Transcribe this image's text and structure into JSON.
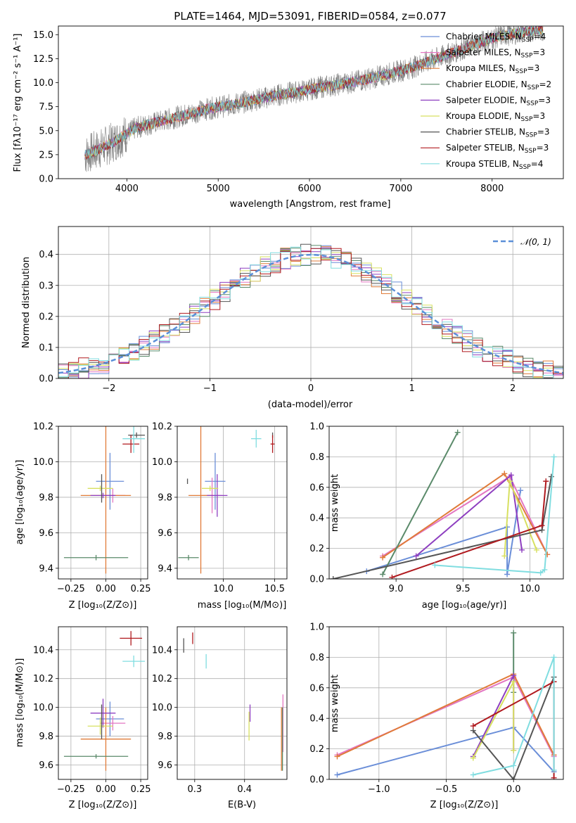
{
  "chart_data": [
    {
      "id": "spectrum",
      "type": "line",
      "title": "PLATE=1464, MJD=53091, FIBERID=0584, z=0.077",
      "xlabel": "wavelength [Angstrom, rest frame]",
      "ylabel": "Flux [fλ10⁻¹⁷ erg cm⁻² s⁻¹ A⁻¹]",
      "xlim": [
        3250,
        8780
      ],
      "ylim": [
        0,
        15.9
      ],
      "xticks": [
        4000,
        5000,
        6000,
        7000,
        8000
      ],
      "yticks": [
        0.0,
        2.5,
        5.0,
        7.5,
        10.0,
        12.5,
        15.0
      ],
      "x": [
        3550,
        3700,
        3850,
        3950,
        4100,
        4300,
        4500,
        4700,
        4900,
        5100,
        5300,
        5500,
        5700,
        5900,
        6100,
        6300,
        6500,
        6700,
        6900,
        7100,
        7300,
        7500,
        7700,
        7900,
        8100,
        8300,
        8500
      ],
      "observed": [
        2.5,
        3.1,
        3.8,
        4.4,
        5.3,
        5.8,
        6.3,
        6.8,
        7.3,
        7.6,
        8.0,
        8.4,
        8.8,
        9.1,
        9.5,
        9.8,
        10.1,
        10.5,
        11.0,
        11.5,
        12.2,
        12.9,
        13.6,
        14.3,
        14.9,
        15.2,
        15.5
      ],
      "legend_position": "upper right",
      "legend": [
        {
          "label": "Chabrier MILES, N",
          "sub": "SSP",
          "suffix": "=4",
          "color": "#6a8ed8"
        },
        {
          "label": "Salpeter MILES, N",
          "sub": "SSP",
          "suffix": "=3",
          "color": "#e377c2"
        },
        {
          "label": "Kroupa MILES, N",
          "sub": "SSP",
          "suffix": "=3",
          "color": "#e07b39"
        },
        {
          "label": "Chabrier ELODIE, N",
          "sub": "SSP",
          "suffix": "=2",
          "color": "#5a8a6a"
        },
        {
          "label": "Salpeter ELODIE, N",
          "sub": "SSP",
          "suffix": "=3",
          "color": "#8e3fc0"
        },
        {
          "label": "Kroupa ELODIE, N",
          "sub": "SSP",
          "suffix": "=3",
          "color": "#d7e060"
        },
        {
          "label": "Chabrier STELIB, N",
          "sub": "SSP",
          "suffix": "=3",
          "color": "#555555"
        },
        {
          "label": "Salpeter STELIB, N",
          "sub": "SSP",
          "suffix": "=3",
          "color": "#b0191e"
        },
        {
          "label": "Kroupa STELIB, N",
          "sub": "SSP",
          "suffix": "=4",
          "color": "#80dde0"
        }
      ]
    },
    {
      "id": "residuals",
      "type": "line",
      "xlabel": "(data-model)/error",
      "ylabel": "Normed distribution",
      "xlim": [
        -2.5,
        2.5
      ],
      "ylim": [
        0,
        0.49
      ],
      "xticks": [
        -2,
        -1,
        0,
        1,
        2
      ],
      "yticks": [
        0.0,
        0.1,
        0.2,
        0.3,
        0.4
      ],
      "legend": [
        {
          "label": "𝒩(0, 1)",
          "color": "#5b8fd8",
          "style": "dashed"
        }
      ],
      "legend_position": "upper right",
      "grid": true
    },
    {
      "id": "age_vs_Z",
      "type": "scatter",
      "xlabel": "Z [log₁₀(Z/Z⊙)]",
      "ylabel": "age  [log₁₀(age/yr)]",
      "xlim": [
        -0.34,
        0.3
      ],
      "ylim": [
        9.34,
        10.2
      ],
      "xticks": [
        -0.25,
        0.0,
        0.25
      ],
      "xticklabels": [
        "−0.25",
        "0.00",
        "0.25"
      ],
      "yticks": [
        9.4,
        9.6,
        9.8,
        10.0,
        10.2
      ],
      "series": [
        {
          "name": "Chabrier MILES",
          "x": 0.03,
          "y": 9.89,
          "xerr": 0.1,
          "yerr": 0.16,
          "color": "#6a8ed8"
        },
        {
          "name": "Salpeter MILES",
          "x": 0.05,
          "y": 9.81,
          "xerr": 0.09,
          "yerr": 0.04,
          "color": "#e377c2"
        },
        {
          "name": "Kroupa MILES",
          "x": 0.0,
          "y": 9.81,
          "xerr": 0.18,
          "yerr": 0.44,
          "color": "#e07b39"
        },
        {
          "name": "Chabrier ELODIE",
          "x": -0.07,
          "y": 9.46,
          "xerr": 0.23,
          "yerr": 0.0,
          "color": "#5a8a6a"
        },
        {
          "name": "Salpeter ELODIE",
          "x": -0.02,
          "y": 9.81,
          "xerr": 0.09,
          "yerr": 0.0,
          "color": "#8e3fc0"
        },
        {
          "name": "Kroupa ELODIE",
          "x": -0.04,
          "y": 9.85,
          "xerr": 0.09,
          "yerr": 0.0,
          "color": "#d7e060"
        },
        {
          "name": "Chabrier STELIB",
          "x": -0.03,
          "y": 9.85,
          "xerr": 0.0,
          "yerr": 0.08,
          "color": "#555555"
        },
        {
          "name": "Chabrier STELIB (b)",
          "x": 0.22,
          "y": 10.15,
          "xerr": 0.06,
          "yerr": 0.0,
          "color": "#555555"
        },
        {
          "name": "Salpeter STELIB",
          "x": 0.18,
          "y": 10.1,
          "xerr": 0.06,
          "yerr": 0.05,
          "color": "#b0191e"
        },
        {
          "name": "Kroupa STELIB",
          "x": 0.2,
          "y": 10.13,
          "xerr": 0.08,
          "yerr": 0.08,
          "color": "#80dde0"
        }
      ]
    },
    {
      "id": "age_vs_mass",
      "type": "scatter",
      "xlabel": "mass [log₁₀(M/M⊙)]",
      "xlim": [
        9.55,
        10.62
      ],
      "ylim": [
        9.34,
        10.2
      ],
      "xticks": [
        10.0,
        10.5
      ],
      "yticks": [
        9.4,
        9.6,
        9.8,
        10.0,
        10.2
      ],
      "series": [
        {
          "name": "Chabrier MILES",
          "x": 9.92,
          "y": 9.89,
          "xerr": 0.1,
          "yerr": 0.16,
          "color": "#6a8ed8"
        },
        {
          "name": "Salpeter MILES",
          "x": 9.89,
          "y": 9.81,
          "xerr": 0.1,
          "yerr": 0.1,
          "color": "#e377c2"
        },
        {
          "name": "Kroupa MILES",
          "x": 9.78,
          "y": 9.81,
          "xerr": 0.12,
          "yerr": 0.44,
          "color": "#e07b39"
        },
        {
          "name": "Chabrier ELODIE",
          "x": 9.66,
          "y": 9.46,
          "xerr": 0.1,
          "yerr": 0.0,
          "color": "#5a8a6a"
        },
        {
          "name": "Salpeter ELODIE",
          "x": 9.94,
          "y": 9.81,
          "xerr": 0.1,
          "yerr": 0.12,
          "color": "#8e3fc0"
        },
        {
          "name": "Kroupa ELODIE",
          "x": 9.87,
          "y": 9.85,
          "xerr": 0.08,
          "yerr": 0.0,
          "color": "#d7e060"
        },
        {
          "name": "Chabrier STELIB",
          "x": 9.65,
          "y": 9.89,
          "xerr": 0.0,
          "yerr": 0.0,
          "color": "#555555"
        },
        {
          "name": "Chabrier STELIB (b)",
          "x": 10.48,
          "y": 10.15,
          "xerr": 0.0,
          "yerr": 0.0,
          "color": "#555555"
        },
        {
          "name": "Salpeter STELIB",
          "x": 10.48,
          "y": 10.1,
          "xerr": 0.02,
          "yerr": 0.05,
          "color": "#b0191e"
        },
        {
          "name": "Kroupa STELIB",
          "x": 10.32,
          "y": 10.13,
          "xerr": 0.05,
          "yerr": 0.05,
          "color": "#80dde0"
        }
      ]
    },
    {
      "id": "weight_vs_age",
      "type": "line",
      "xlabel": "age  [log₁₀(age/yr)]",
      "ylabel": "mass weight",
      "xlim": [
        8.5,
        10.25
      ],
      "ylim": [
        0,
        1.0
      ],
      "xticks": [
        9.0,
        9.5,
        10.0
      ],
      "yticks": [
        0.0,
        0.2,
        0.4,
        0.6,
        0.8,
        1.0
      ],
      "grid": true,
      "series": [
        {
          "name": "Chabrier MILES",
          "color": "#6a8ed8",
          "x": [
            8.78,
            9.83,
            9.83,
            9.93
          ],
          "y": [
            0.05,
            0.34,
            0.03,
            0.58
          ]
        },
        {
          "name": "Salpeter MILES",
          "color": "#e377c2",
          "x": [
            8.9,
            9.85,
            10.13
          ],
          "y": [
            0.15,
            0.67,
            0.16
          ]
        },
        {
          "name": "Kroupa MILES",
          "color": "#e07b39",
          "x": [
            8.9,
            9.81,
            10.13
          ],
          "y": [
            0.14,
            0.69,
            0.16
          ]
        },
        {
          "name": "Chabrier ELODIE",
          "color": "#5a8a6a",
          "x": [
            8.9,
            9.46
          ],
          "y": [
            0.03,
            0.96
          ]
        },
        {
          "name": "Salpeter ELODIE",
          "color": "#8e3fc0",
          "x": [
            9.15,
            9.86,
            9.94
          ],
          "y": [
            0.15,
            0.68,
            0.19
          ]
        },
        {
          "name": "Kroupa ELODIE",
          "color": "#d7e060",
          "x": [
            9.81,
            9.85,
            10.05
          ],
          "y": [
            0.15,
            0.64,
            0.19
          ]
        },
        {
          "name": "Chabrier STELIB",
          "color": "#555555",
          "x": [
            8.53,
            10.09,
            10.16
          ],
          "y": [
            0.0,
            0.32,
            0.67
          ]
        },
        {
          "name": "Salpeter STELIB",
          "color": "#b0191e",
          "x": [
            8.97,
            10.09,
            10.12
          ],
          "y": [
            0.01,
            0.35,
            0.64
          ]
        },
        {
          "name": "Kroupa STELIB",
          "color": "#80dde0",
          "x": [
            9.29,
            10.08,
            10.11,
            10.18
          ],
          "y": [
            0.09,
            0.04,
            0.06,
            0.8
          ]
        }
      ]
    },
    {
      "id": "mass_vs_Z",
      "type": "scatter",
      "xlabel": "Z [log₁₀(Z/Z⊙)]",
      "ylabel": "mass [log₁₀(M/M⊙)]",
      "xlim": [
        -0.34,
        0.3
      ],
      "ylim": [
        9.5,
        10.56
      ],
      "xticks": [
        -0.25,
        0.0,
        0.25
      ],
      "xticklabels": [
        "−0.25",
        "0.00",
        "0.25"
      ],
      "yticks": [
        9.6,
        9.8,
        10.0,
        10.2,
        10.4
      ],
      "series": [
        {
          "name": "Chabrier MILES",
          "x": 0.03,
          "y": 9.92,
          "xerr": 0.1,
          "yerr": 0.12,
          "color": "#6a8ed8"
        },
        {
          "name": "Salpeter MILES",
          "x": 0.05,
          "y": 9.89,
          "xerr": 0.09,
          "yerr": 0.05,
          "color": "#e377c2"
        },
        {
          "name": "Kroupa MILES",
          "x": 0.0,
          "y": 9.78,
          "xerr": 0.18,
          "yerr": 0.22,
          "color": "#e07b39"
        },
        {
          "name": "Chabrier ELODIE",
          "x": -0.07,
          "y": 9.66,
          "xerr": 0.23,
          "yerr": 0.0,
          "color": "#5a8a6a"
        },
        {
          "name": "Salpeter ELODIE",
          "x": -0.02,
          "y": 9.96,
          "xerr": 0.09,
          "yerr": 0.1,
          "color": "#8e3fc0"
        },
        {
          "name": "Kroupa ELODIE",
          "x": -0.04,
          "y": 9.87,
          "xerr": 0.09,
          "yerr": 0.06,
          "color": "#d7e060"
        },
        {
          "name": "Chabrier STELIB",
          "x": -0.03,
          "y": 9.9,
          "xerr": 0.0,
          "yerr": 0.12,
          "color": "#555555"
        },
        {
          "name": "Salpeter STELIB",
          "x": 0.18,
          "y": 10.48,
          "xerr": 0.08,
          "yerr": 0.05,
          "color": "#b0191e"
        },
        {
          "name": "Kroupa STELIB",
          "x": 0.2,
          "y": 10.32,
          "xerr": 0.08,
          "yerr": 0.04,
          "color": "#80dde0"
        }
      ]
    },
    {
      "id": "mass_vs_ebv",
      "type": "scatter",
      "xlabel": "E(B-V)",
      "xlim": [
        0.265,
        0.485
      ],
      "ylim": [
        9.5,
        10.56
      ],
      "xticks": [
        0.3,
        0.4
      ],
      "yticks": [
        9.6,
        9.8,
        10.0,
        10.2,
        10.4
      ],
      "series": [
        {
          "name": "Chabrier STELIB",
          "x": 0.278,
          "y": 10.43,
          "xerr": 0.0,
          "yerr": 0.05,
          "color": "#555555"
        },
        {
          "name": "Salpeter STELIB",
          "x": 0.296,
          "y": 10.48,
          "xerr": 0.0,
          "yerr": 0.04,
          "color": "#b0191e"
        },
        {
          "name": "Kroupa STELIB",
          "x": 0.323,
          "y": 10.32,
          "xerr": 0.0,
          "yerr": 0.05,
          "color": "#80dde0"
        },
        {
          "name": "Salpeter ELODIE",
          "x": 0.411,
          "y": 9.96,
          "xerr": 0.0,
          "yerr": 0.06,
          "color": "#8e3fc0"
        },
        {
          "name": "Kroupa ELODIE",
          "x": 0.409,
          "y": 9.87,
          "xerr": 0.0,
          "yerr": 0.1,
          "color": "#d7e060"
        },
        {
          "name": "Salpeter MILES",
          "x": 0.477,
          "y": 9.89,
          "xerr": 0.0,
          "yerr": 0.2,
          "color": "#e377c2"
        },
        {
          "name": "Kroupa MILES",
          "x": 0.474,
          "y": 9.78,
          "xerr": 0.0,
          "yerr": 0.22,
          "color": "#e07b39"
        },
        {
          "name": "Chabrier ELODIE",
          "x": 0.476,
          "y": 9.78,
          "xerr": 0.0,
          "yerr": 0.22,
          "color": "#5a8a6a"
        }
      ]
    },
    {
      "id": "weight_vs_Z",
      "type": "line",
      "xlabel": "Z [log₁₀(Z/Z⊙)]",
      "ylabel": "mass weight",
      "xlim": [
        -1.37,
        0.37
      ],
      "ylim": [
        0,
        1.0
      ],
      "xticks": [
        -1.0,
        -0.5,
        0.0
      ],
      "xticklabels": [
        "−1.0",
        "−0.5",
        "0.0"
      ],
      "yticks": [
        0.0,
        0.2,
        0.4,
        0.6,
        0.8,
        1.0
      ],
      "grid": true,
      "series": [
        {
          "name": "Chabrier MILES",
          "color": "#6a8ed8",
          "x": [
            -1.31,
            0.0,
            0.3
          ],
          "y": [
            0.03,
            0.34,
            0.05
          ]
        },
        {
          "name": "Salpeter MILES",
          "color": "#e377c2",
          "x": [
            -1.31,
            0.0,
            0.3
          ],
          "y": [
            0.16,
            0.67,
            0.15
          ]
        },
        {
          "name": "Kroupa MILES",
          "color": "#e07b39",
          "x": [
            -1.31,
            0.0,
            0.3
          ],
          "y": [
            0.15,
            0.69,
            0.16
          ]
        },
        {
          "name": "Chabrier ELODIE",
          "color": "#5a8a6a",
          "x": [
            0.0,
            0.0
          ],
          "y": [
            0.96,
            0.57
          ]
        },
        {
          "name": "Salpeter ELODIE",
          "color": "#8e3fc0",
          "x": [
            -0.3,
            0.0,
            0.0
          ],
          "y": [
            0.15,
            0.68,
            0.19
          ]
        },
        {
          "name": "Kroupa ELODIE",
          "color": "#d7e060",
          "x": [
            -0.3,
            0.0,
            0.0
          ],
          "y": [
            0.14,
            0.64,
            0.19
          ]
        },
        {
          "name": "Chabrier STELIB",
          "color": "#555555",
          "x": [
            -0.3,
            0.0,
            0.3
          ],
          "y": [
            0.32,
            0.0,
            0.67
          ]
        },
        {
          "name": "Salpeter STELIB",
          "color": "#b0191e",
          "x": [
            -0.3,
            0.3,
            0.3
          ],
          "y": [
            0.35,
            0.64,
            0.01
          ]
        },
        {
          "name": "Kroupa STELIB",
          "color": "#80dde0",
          "x": [
            -0.3,
            0.0,
            0.3,
            0.3
          ],
          "y": [
            0.03,
            0.09,
            0.8,
            0.06
          ]
        }
      ]
    }
  ]
}
